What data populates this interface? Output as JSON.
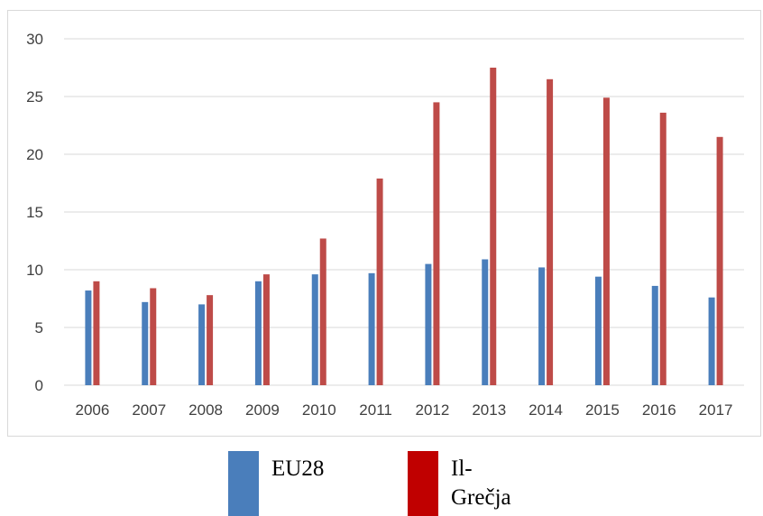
{
  "chart_data": {
    "type": "bar",
    "categories": [
      "2006",
      "2007",
      "2008",
      "2009",
      "2010",
      "2011",
      "2012",
      "2013",
      "2014",
      "2015",
      "2016",
      "2017"
    ],
    "series": [
      {
        "name": "EU28",
        "color": "#4a7ebb",
        "values": [
          8.2,
          7.2,
          7.0,
          9.0,
          9.6,
          9.7,
          10.5,
          10.9,
          10.2,
          9.4,
          8.6,
          7.6
        ]
      },
      {
        "name": "Il-Grečja",
        "color": "#be4b48",
        "values": [
          9.0,
          8.4,
          7.8,
          9.6,
          12.7,
          17.9,
          24.5,
          27.5,
          26.5,
          24.9,
          23.6,
          21.5
        ]
      }
    ],
    "ylim": [
      0,
      30
    ],
    "yticks": [
      "0",
      "5",
      "10",
      "15",
      "20",
      "25",
      "30"
    ],
    "grid": true,
    "legend_placement": "bottom"
  },
  "legend": {
    "items": [
      {
        "label_line1": "EU28",
        "label_line2": "",
        "color": "#4a7ebb"
      },
      {
        "label_line1": "Il-",
        "label_line2": "Grečja",
        "color": "#c00000"
      }
    ]
  }
}
